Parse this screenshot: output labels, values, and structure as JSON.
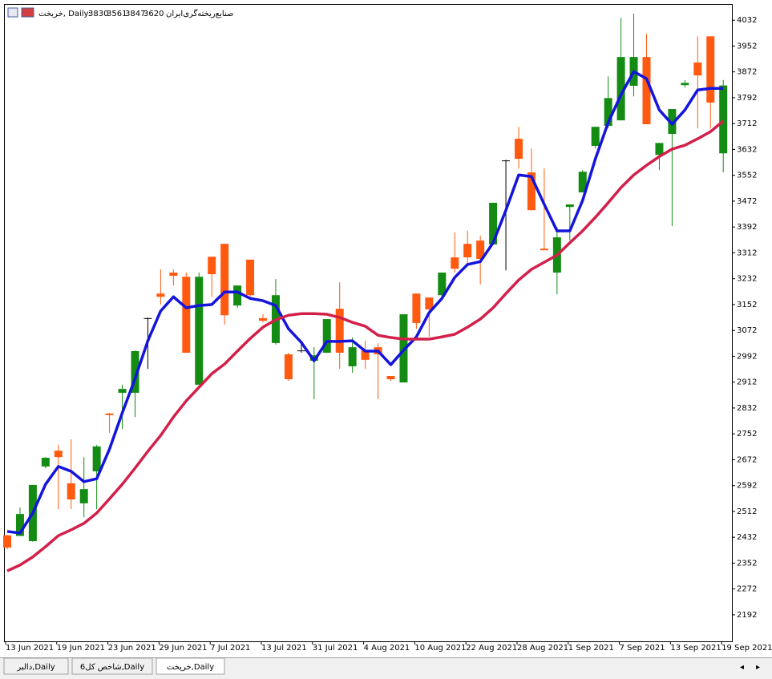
{
  "chart_data": {
    "type": "candlestick",
    "title": "خریخت, Daily:",
    "title_values": [
      3830,
      3561,
      3847,
      3620
    ],
    "description": "صنایع‌ریخته‌گری‌ایران",
    "categories": [
      "13 Jun 2021",
      null,
      null,
      null,
      "19 Jun 2021",
      null,
      null,
      null,
      "23 Jun 2021",
      null,
      null,
      null,
      "29 Jun 2021",
      null,
      null,
      null,
      "7 Jul 2021",
      null,
      null,
      null,
      "13 Jul 2021",
      null,
      null,
      null,
      "31 Jul 2021",
      null,
      null,
      null,
      "4 Aug 2021",
      null,
      null,
      null,
      "10 Aug 2021",
      null,
      null,
      null,
      "22 Aug 2021",
      null,
      null,
      null,
      "28 Aug 2021",
      null,
      null,
      null,
      "1 Sep 2021",
      null,
      null,
      null,
      "7 Sep 2021",
      null,
      null,
      null,
      "13 Sep 2021",
      null,
      null,
      null,
      "19 Sep 2021"
    ],
    "open": [
      2438,
      2436,
      2420,
      2651,
      2700,
      2599,
      2537,
      2636,
      2815,
      2879,
      2879,
      3110,
      3186,
      3251,
      3238,
      2904,
      3300,
      3340,
      3149,
      3291,
      3110,
      3033,
      2998,
      3010,
      2978,
      3003,
      3139,
      2961,
      3010,
      3020,
      2931,
      2911,
      3186,
      3174,
      3181,
      3298,
      3340,
      3350,
      3338,
      3598,
      3665,
      3561,
      3325,
      3251,
      3454,
      3499,
      3643,
      3705,
      3722,
      3829,
      3918,
      3615,
      3680,
      3831,
      3901,
      3982,
      3620
    ],
    "high": [
      2440,
      2524,
      2594,
      2680,
      2718,
      2735,
      2680,
      2718,
      2817,
      2904,
      3010,
      3112,
      3261,
      3261,
      3251,
      3251,
      3300,
      3340,
      3211,
      3291,
      3122,
      3231,
      3003,
      3040,
      3020,
      3107,
      3221,
      3050,
      3040,
      3032,
      2931,
      3122,
      3186,
      3174,
      3251,
      3375,
      3380,
      3365,
      3467,
      3600,
      3702,
      3635,
      3573,
      3392,
      3462,
      3568,
      3702,
      3858,
      4039,
      4052,
      3990,
      3652,
      3757,
      3846,
      3982,
      3982,
      3847
    ],
    "low": [
      2395,
      2436,
      2418,
      2645,
      2519,
      2519,
      2494,
      2519,
      2755,
      2767,
      2804,
      2953,
      3152,
      3211,
      3003,
      2904,
      3176,
      3090,
      3141,
      3176,
      3097,
      3028,
      2916,
      3003,
      2859,
      3003,
      2953,
      2941,
      2953,
      2859,
      2916,
      2911,
      3077,
      3052,
      3171,
      3251,
      3276,
      3214,
      3338,
      3258,
      3573,
      3444,
      3320,
      3184,
      3350,
      3499,
      3635,
      3698,
      3722,
      3796,
      3710,
      3568,
      3395,
      3824,
      3697,
      3697,
      3561
    ],
    "close": [
      2400,
      2504,
      2594,
      2678,
      2680,
      2549,
      2581,
      2713,
      2810,
      2891,
      3008,
      3110,
      3176,
      3241,
      3003,
      3238,
      3246,
      3119,
      3211,
      3181,
      3102,
      3181,
      2921,
      3010,
      2995,
      3107,
      3003,
      3020,
      2981,
      2998,
      2921,
      3122,
      3095,
      3137,
      3251,
      3263,
      3298,
      3293,
      3467,
      3598,
      3603,
      3444,
      3320,
      3360,
      3462,
      3563,
      3702,
      3791,
      3918,
      3918,
      3710,
      3652,
      3757,
      3838,
      3861,
      3777,
      3830
    ],
    "up_color": "#148c14",
    "down_color": "#ff5a10",
    "doji_color": "#000000",
    "moving_averages": [
      {
        "color": "#1414dc",
        "values": [
          2450,
          2445,
          2507,
          2596,
          2651,
          2636,
          2604,
          2613,
          2705,
          2817,
          2923,
          3040,
          3132,
          3176,
          3142,
          3149,
          3152,
          3191,
          3191,
          3171,
          3164,
          3149,
          3077,
          3035,
          2978,
          3038,
          3038,
          3040,
          3008,
          3008,
          2966,
          3011,
          3052,
          3127,
          3171,
          3236,
          3276,
          3285,
          3343,
          3444,
          3553,
          3548,
          3462,
          3380,
          3380,
          3474,
          3603,
          3715,
          3801,
          3873,
          3851,
          3754,
          3710,
          3754,
          3816,
          3821,
          3821
        ]
      },
      {
        "color": "#d2204a",
        "values": [
          2328,
          2346,
          2371,
          2403,
          2437,
          2455,
          2475,
          2507,
          2551,
          2596,
          2646,
          2698,
          2747,
          2804,
          2854,
          2896,
          2938,
          2968,
          3008,
          3047,
          3082,
          3105,
          3119,
          3124,
          3124,
          3122,
          3112,
          3097,
          3085,
          3057,
          3050,
          3045,
          3045,
          3045,
          3052,
          3060,
          3082,
          3107,
          3142,
          3186,
          3228,
          3261,
          3283,
          3305,
          3343,
          3380,
          3422,
          3467,
          3514,
          3553,
          3583,
          3610,
          3633,
          3645,
          3665,
          3687,
          3720
        ]
      }
    ],
    "ylim": [
      2110,
      4082
    ],
    "yticks": [
      2192,
      2272,
      2352,
      2432,
      2512,
      2592,
      2672,
      2752,
      2832,
      2912,
      2992,
      3072,
      3152,
      3232,
      3312,
      3392,
      3472,
      3552,
      3632,
      3712,
      3792,
      3872,
      3952,
      4032
    ],
    "grid": false
  },
  "tabs": [
    "دالبر,Daily",
    "شاخص کل6,Daily",
    "خریخت,Daily"
  ],
  "active_tab": 2
}
